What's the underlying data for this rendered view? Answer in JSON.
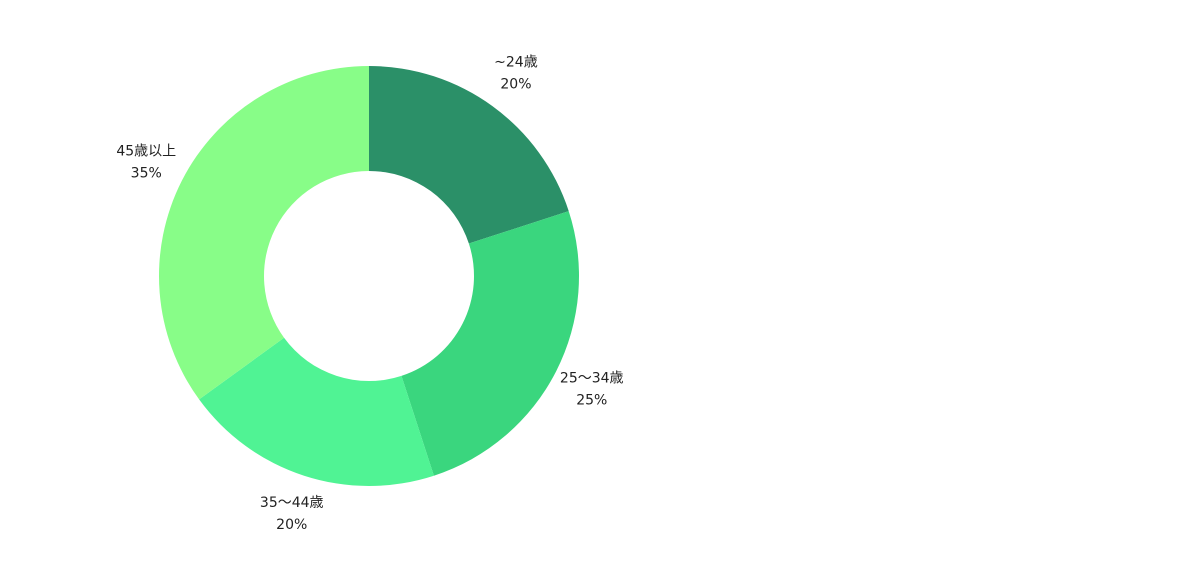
{
  "chart_data": {
    "type": "donut",
    "categories": [
      "~24歳",
      "25〜34歳",
      "35〜44歳",
      "45歳以上"
    ],
    "values": [
      20,
      25,
      20,
      35
    ],
    "value_labels": [
      "20%",
      "25%",
      "20%",
      "35%"
    ],
    "colors": [
      "#2b9068",
      "#3ad67e",
      "#50f394",
      "#88fd88"
    ]
  }
}
